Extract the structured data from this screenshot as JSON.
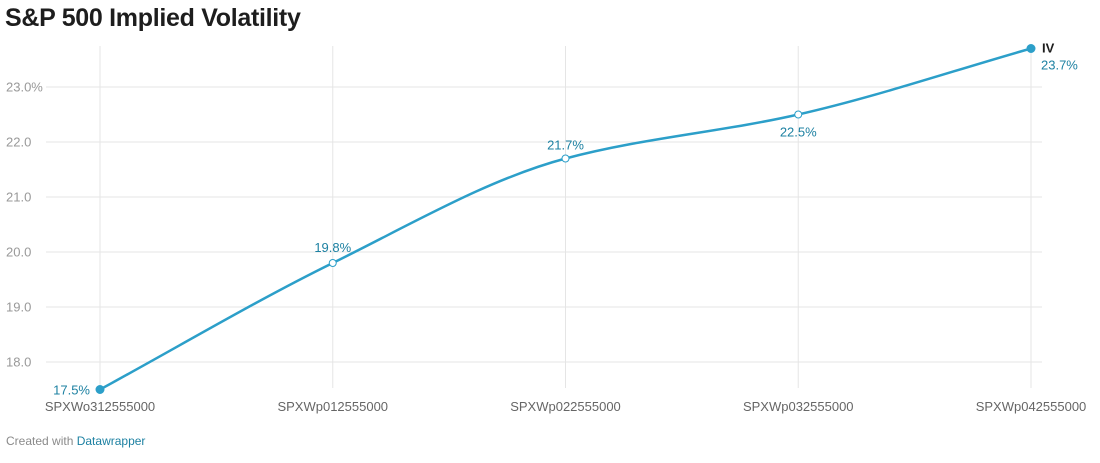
{
  "title": "S&P 500 Implied Volatility",
  "footer": {
    "prefix": "Created with",
    "link_text": "Datawrapper"
  },
  "colors": {
    "series": "#2c9fc9",
    "label": "#1d81a2",
    "grid": "#e5e5e5",
    "tick": "#999999",
    "axis_label": "#666666"
  },
  "chart_data": {
    "type": "line",
    "title": "S&P 500 Implied Volatility",
    "categories": [
      "SPXWo312555000",
      "SPXWp012555000",
      "SPXWp022555000",
      "SPXWp032555000",
      "SPXWp042555000"
    ],
    "series": [
      {
        "name": "IV",
        "values": [
          17.5,
          19.8,
          21.7,
          22.5,
          23.7
        ],
        "value_labels": [
          "17.5%",
          "19.8%",
          "21.7%",
          "22.5%",
          "23.7%"
        ]
      }
    ],
    "y_ticks": [
      18.0,
      19.0,
      20.0,
      21.0,
      22.0,
      23.0
    ],
    "y_tick_labels": [
      "18.0",
      "19.0",
      "20.0",
      "21.0",
      "22.0",
      "23.0%"
    ],
    "ylim": [
      17.5,
      23.7
    ],
    "xlabel": "",
    "ylabel": "",
    "grid": true,
    "legend": "line-end label"
  }
}
